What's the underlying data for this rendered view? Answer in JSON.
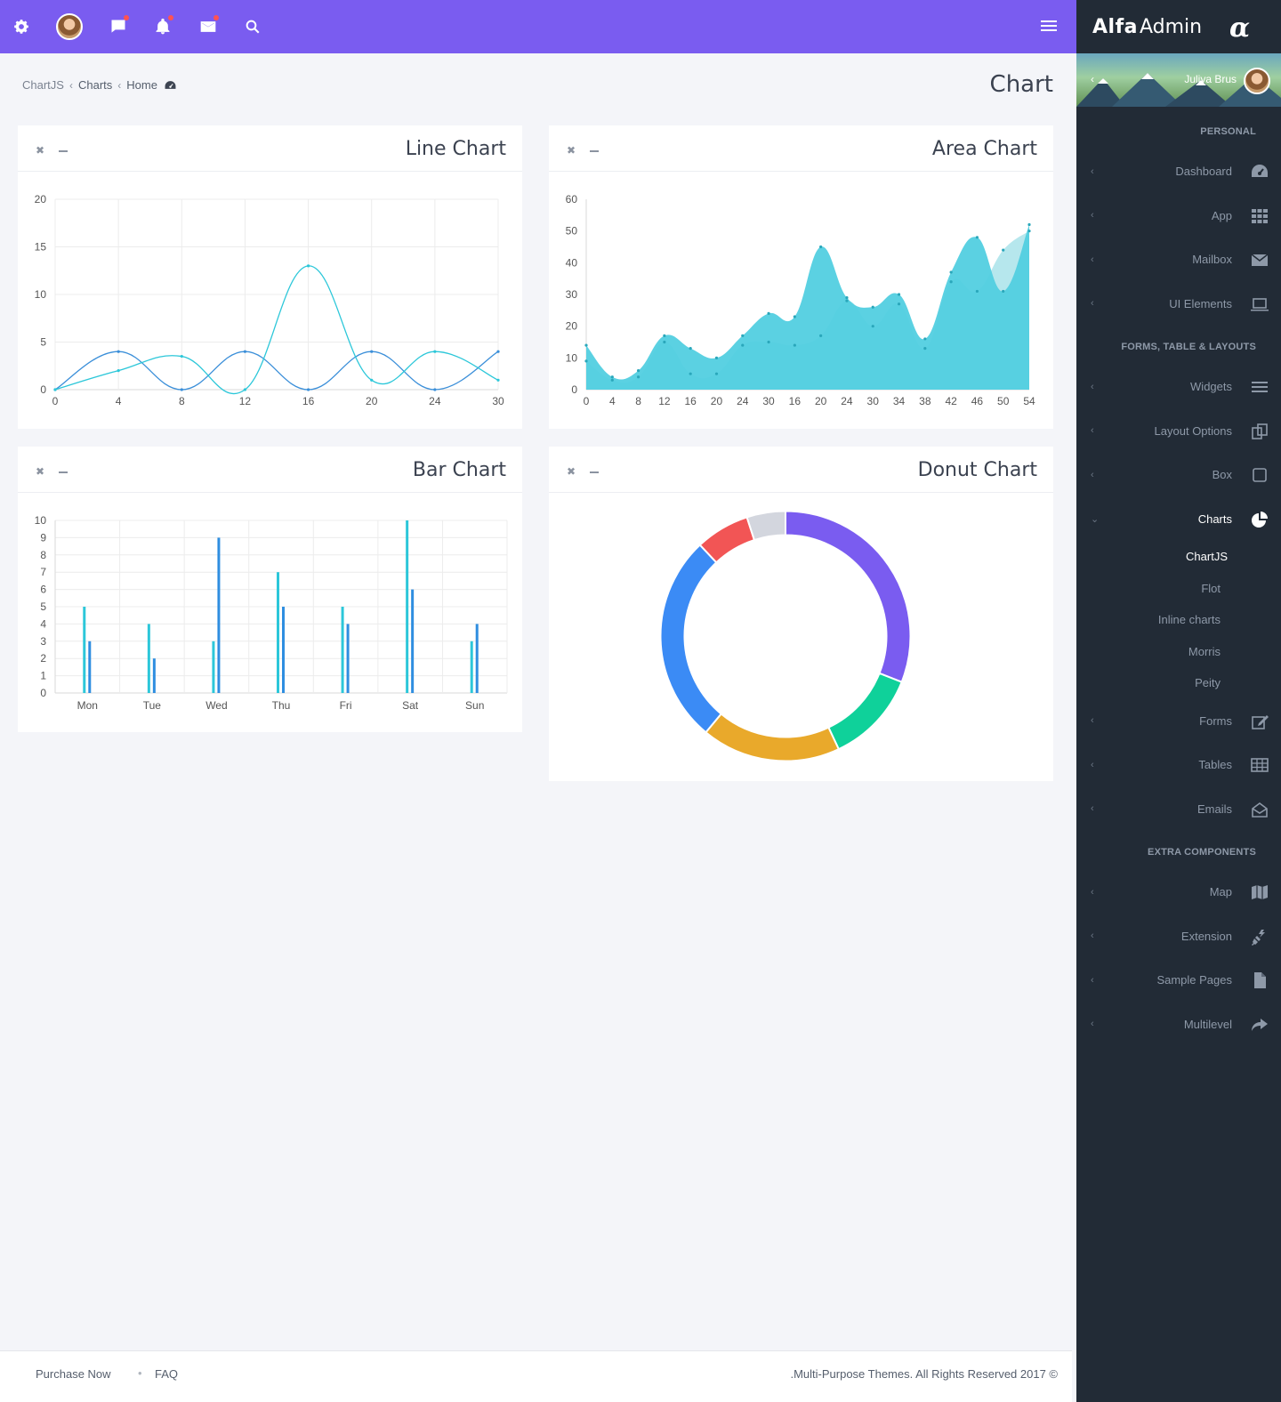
{
  "topbar": {
    "icons": [
      "gear-icon",
      "avatar",
      "chat-icon",
      "bell-icon",
      "mail-icon",
      "search-icon",
      "hamburger-icon"
    ],
    "accent": "#7a5cf0"
  },
  "sidebar": {
    "brand_bold": "Alfa",
    "brand_light": "Admin",
    "brand_logo": "α",
    "user_name": "Juliya Brus",
    "sections": [
      {
        "header": "PERSONAL",
        "items": [
          {
            "label": "Dashboard",
            "icon": "dashboard-icon"
          },
          {
            "label": "App",
            "icon": "grid-icon"
          },
          {
            "label": "Mailbox",
            "icon": "envelope-icon"
          },
          {
            "label": "UI Elements",
            "icon": "laptop-icon"
          }
        ]
      },
      {
        "header": "FORMS, TABLE & LAYOUTS",
        "items": [
          {
            "label": "Widgets",
            "icon": "list-icon"
          },
          {
            "label": "Layout Options",
            "icon": "copy-icon"
          },
          {
            "label": "Box",
            "icon": "square-icon"
          },
          {
            "label": "Charts",
            "icon": "pie-chart-icon",
            "active": true,
            "submenu": [
              "ChartJS",
              "Flot",
              "Inline charts",
              "Morris",
              "Peity"
            ]
          },
          {
            "label": "Forms",
            "icon": "edit-icon"
          },
          {
            "label": "Tables",
            "icon": "table-icon"
          },
          {
            "label": "Emails",
            "icon": "envelope-open-icon"
          }
        ]
      },
      {
        "header": "EXTRA COMPONENTS",
        "items": [
          {
            "label": "Map",
            "icon": "map-icon"
          },
          {
            "label": "Extension",
            "icon": "plug-icon"
          },
          {
            "label": "Sample Pages",
            "icon": "file-icon"
          },
          {
            "label": "Multilevel",
            "icon": "share-icon"
          }
        ]
      }
    ]
  },
  "breadcrumb": {
    "items": [
      "ChartJS",
      "Charts",
      "Home"
    ],
    "home_icon": "dashboard-icon"
  },
  "page": {
    "title": "Chart"
  },
  "panels": {
    "line": {
      "title": "Line Chart"
    },
    "area": {
      "title": "Area Chart"
    },
    "bar": {
      "title": "Bar Chart"
    },
    "donut": {
      "title": "Donut Chart"
    }
  },
  "chart_data": [
    {
      "type": "line",
      "title": "Line Chart",
      "x": [
        0,
        4,
        8,
        12,
        16,
        20,
        24,
        30
      ],
      "ylim": [
        0,
        20
      ],
      "yticks": [
        0,
        5,
        10,
        15,
        20
      ],
      "series": [
        {
          "values": [
            0,
            4,
            0,
            4,
            0,
            4,
            0,
            4
          ],
          "color": "#3b8fd9"
        },
        {
          "values": [
            0,
            2,
            3.5,
            0,
            13,
            1,
            4,
            1
          ],
          "color": "#2cc7d9"
        }
      ],
      "grid": true
    },
    {
      "type": "area",
      "title": "Area Chart",
      "x": [
        0,
        4,
        8,
        12,
        16,
        20,
        24,
        30,
        16,
        20,
        24,
        30,
        34,
        38,
        42,
        46,
        50,
        54
      ],
      "ylim": [
        0,
        60
      ],
      "yticks": [
        0,
        10,
        20,
        30,
        40,
        50,
        60
      ],
      "series": [
        {
          "values": [
            14,
            4,
            6,
            17,
            13,
            10,
            17,
            24,
            23,
            45,
            29,
            26,
            30,
            16,
            37,
            48,
            31,
            52
          ],
          "color": "#52cfe0"
        },
        {
          "values": [
            9,
            3,
            4,
            15,
            5,
            5,
            14,
            15,
            14,
            17,
            28,
            20,
            27,
            13,
            34,
            31,
            44,
            50
          ],
          "color": "#a9e3ea"
        }
      ],
      "grid": false
    },
    {
      "type": "bar",
      "title": "Bar Chart",
      "categories": [
        "Mon",
        "Tue",
        "Wed",
        "Thu",
        "Fri",
        "Sat",
        "Sun"
      ],
      "ylim": [
        0,
        10
      ],
      "yticks": [
        0,
        1,
        2,
        3,
        4,
        5,
        6,
        7,
        8,
        9,
        10
      ],
      "series": [
        {
          "values": [
            5,
            4,
            3,
            7,
            5,
            10,
            3
          ],
          "color": "#2cc7d9"
        },
        {
          "values": [
            3,
            2,
            9,
            5,
            4,
            6,
            4
          ],
          "color": "#2f8ee0"
        }
      ],
      "grid": true
    },
    {
      "type": "pie",
      "title": "Donut Chart",
      "values": [
        31,
        12,
        18,
        27,
        7,
        5
      ],
      "colors": [
        "#7a5cf0",
        "#0fd19a",
        "#e9a92b",
        "#3b8bf5",
        "#f25555",
        "#d3d6de"
      ]
    }
  ],
  "footer": {
    "purchase": "Purchase Now",
    "dot": "•",
    "faq": "FAQ",
    "copyright": ".Multi-Purpose Themes. All Rights Reserved 2017 ©"
  }
}
